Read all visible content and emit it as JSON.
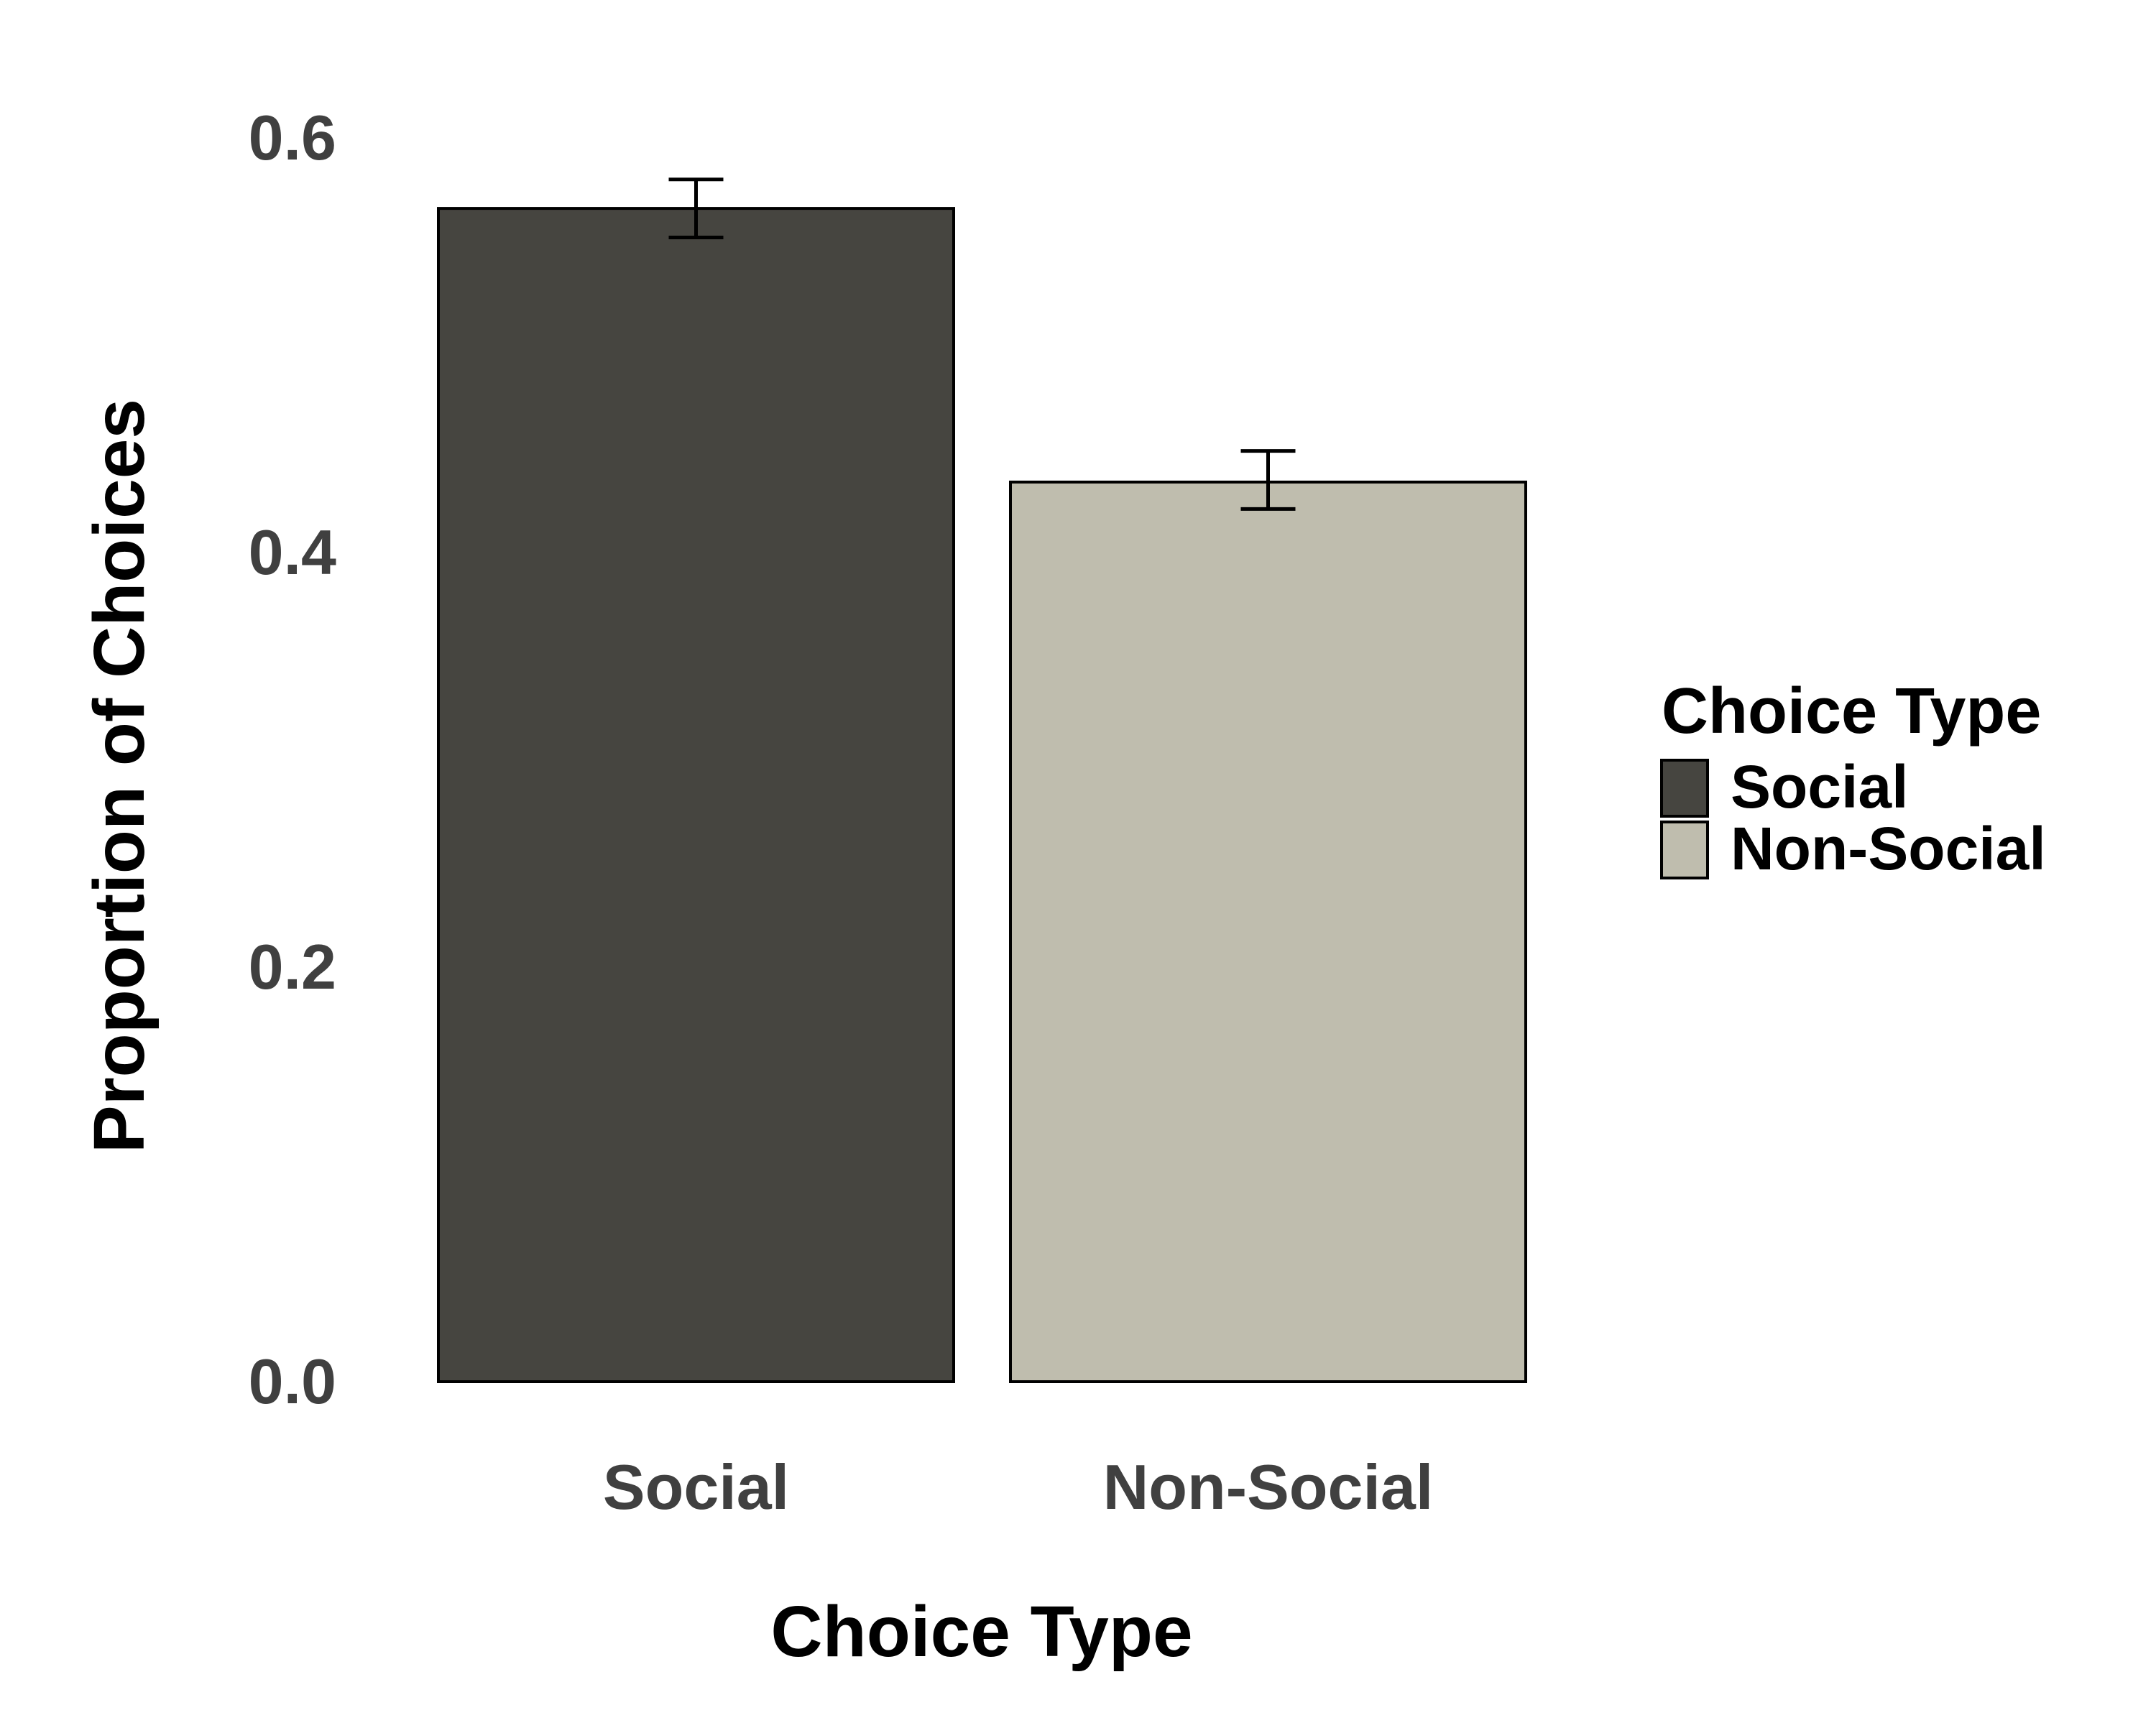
{
  "chart_data": {
    "type": "bar",
    "title": "",
    "xlabel": "Choice Type",
    "ylabel": "Proportion of Choices",
    "categories": [
      "Social",
      "Non-Social"
    ],
    "values": [
      0.566,
      0.434
    ],
    "error_bars": [
      {
        "low": 0.552,
        "high": 0.58
      },
      {
        "low": 0.421,
        "high": 0.449
      }
    ],
    "colors": [
      "#464540",
      "#bfbdae"
    ],
    "ylim": [
      0,
      0.6
    ],
    "yticks": [
      "0.0",
      "0.2",
      "0.4",
      "0.6"
    ],
    "grid": false,
    "legend": {
      "title": "Choice Type",
      "placement": "right",
      "entries": [
        "Social",
        "Non-Social"
      ]
    }
  }
}
